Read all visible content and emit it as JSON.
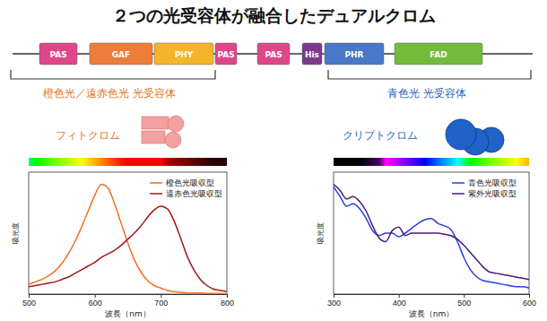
{
  "title": "２つの光受容体が融合したデュアルクロム",
  "domain_diagram": {
    "domains": [
      {
        "label": "PAS",
        "color": "#e0468a"
      },
      {
        "label": "GAF",
        "color": "#ee7d3a"
      },
      {
        "label": "PHY",
        "color": "#f5b52a"
      },
      {
        "label": "PAS",
        "color": "#e0468a"
      },
      {
        "label": "PAS",
        "color": "#e0468a"
      },
      {
        "label": "His",
        "color": "#7a3a8c"
      },
      {
        "label": "PHR",
        "color": "#4a78c8"
      },
      {
        "label": "FAD",
        "color": "#72bb3a"
      }
    ],
    "groups": [
      {
        "label": "橙色光／遠赤色光 光受容体",
        "color": "#e8731a"
      },
      {
        "label": "青色光 光受容体",
        "color": "#1f5fbf"
      }
    ]
  },
  "photoreceptors": [
    {
      "label": "フィトクロム",
      "color": "#e8731a"
    },
    {
      "label": "クリプトクロム",
      "color": "#1f5fbf"
    }
  ],
  "chart_data": [
    {
      "type": "line",
      "xlabel": "波長（nm）",
      "ylabel": "吸光度",
      "x": [
        500,
        510,
        520,
        530,
        540,
        550,
        560,
        570,
        580,
        590,
        600,
        610,
        620,
        630,
        640,
        650,
        660,
        670,
        680,
        690,
        700,
        710,
        720,
        730,
        740,
        750,
        760,
        770,
        780,
        790,
        800
      ],
      "series": [
        {
          "name": "橙色光吸収型",
          "color": "#f07020",
          "values": [
            0.08,
            0.1,
            0.12,
            0.15,
            0.19,
            0.25,
            0.33,
            0.43,
            0.55,
            0.68,
            0.81,
            0.9,
            0.87,
            0.74,
            0.58,
            0.42,
            0.28,
            0.18,
            0.11,
            0.07,
            0.05,
            0.03,
            0.02,
            0.015,
            0.01,
            0.01,
            0.01,
            0.005,
            0.005,
            0.005,
            0
          ]
        },
        {
          "name": "遠赤色光吸収型",
          "color": "#a01818",
          "values": [
            0.06,
            0.07,
            0.08,
            0.09,
            0.1,
            0.12,
            0.14,
            0.17,
            0.2,
            0.23,
            0.26,
            0.3,
            0.33,
            0.36,
            0.4,
            0.45,
            0.5,
            0.56,
            0.63,
            0.69,
            0.72,
            0.7,
            0.6,
            0.46,
            0.31,
            0.2,
            0.12,
            0.07,
            0.04,
            0.03,
            0.02
          ]
        }
      ],
      "xlim": [
        500,
        800
      ],
      "xticks": [
        500,
        600,
        700,
        800
      ],
      "ylim": [
        0,
        1
      ],
      "tick_labels": "x",
      "legend": "upper right"
    },
    {
      "type": "line",
      "xlabel": "波長（nm）",
      "ylabel": "吸光度",
      "x": [
        300,
        310,
        320,
        330,
        340,
        350,
        360,
        370,
        380,
        390,
        400,
        410,
        420,
        430,
        440,
        450,
        460,
        470,
        480,
        490,
        500,
        510,
        520,
        530,
        540,
        550,
        560,
        570,
        580,
        590,
        600
      ],
      "series": [
        {
          "name": "青色光吸収型",
          "color": "#2a3ee0",
          "values": [
            0.88,
            0.8,
            0.72,
            0.74,
            0.7,
            0.62,
            0.52,
            0.48,
            0.5,
            0.5,
            0.47,
            0.5,
            0.54,
            0.58,
            0.61,
            0.62,
            0.58,
            0.56,
            0.53,
            0.43,
            0.3,
            0.2,
            0.14,
            0.11,
            0.1,
            0.09,
            0.08,
            0.07,
            0.06,
            0.06,
            0.05
          ]
        },
        {
          "name": "紫外光吸収型",
          "color": "#4a1a78",
          "values": [
            0.9,
            0.85,
            0.78,
            0.8,
            0.76,
            0.68,
            0.56,
            0.46,
            0.43,
            0.52,
            0.55,
            0.48,
            0.5,
            0.5,
            0.5,
            0.5,
            0.5,
            0.49,
            0.48,
            0.45,
            0.4,
            0.34,
            0.28,
            0.22,
            0.18,
            0.17,
            0.16,
            0.15,
            0.14,
            0.13,
            0.12
          ]
        }
      ],
      "xlim": [
        300,
        600
      ],
      "xticks": [
        300,
        400,
        500,
        600
      ],
      "ylim": [
        0,
        1
      ],
      "tick_labels": "x",
      "legend": "upper right"
    }
  ]
}
